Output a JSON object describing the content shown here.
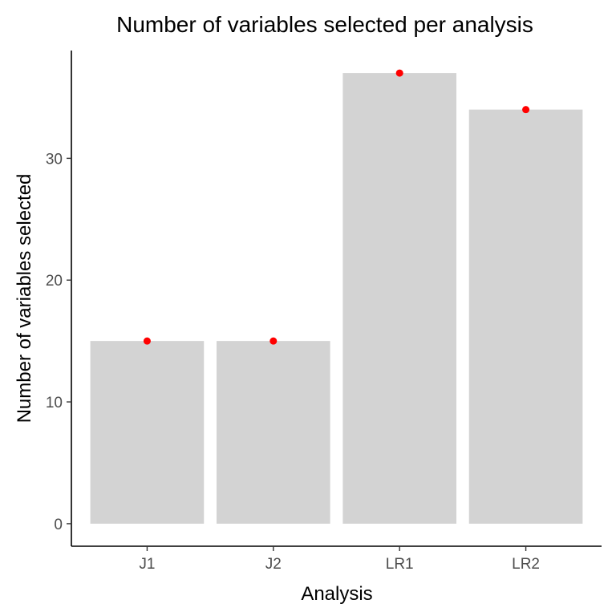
{
  "chart_data": {
    "type": "bar",
    "title": "Number of variables selected per analysis",
    "xlabel": "Analysis",
    "ylabel": "Number of variables selected",
    "categories": [
      "J1",
      "J2",
      "LR1",
      "LR2"
    ],
    "values": [
      15,
      15,
      37,
      34
    ],
    "points": [
      15,
      15,
      37,
      34
    ],
    "yticks": [
      0,
      10,
      20,
      30
    ],
    "ylim": [
      -1.85,
      38.85
    ],
    "grid": false,
    "legend": "none",
    "colors": {
      "bar": "#d3d3d3",
      "point": "#ff0000"
    }
  }
}
